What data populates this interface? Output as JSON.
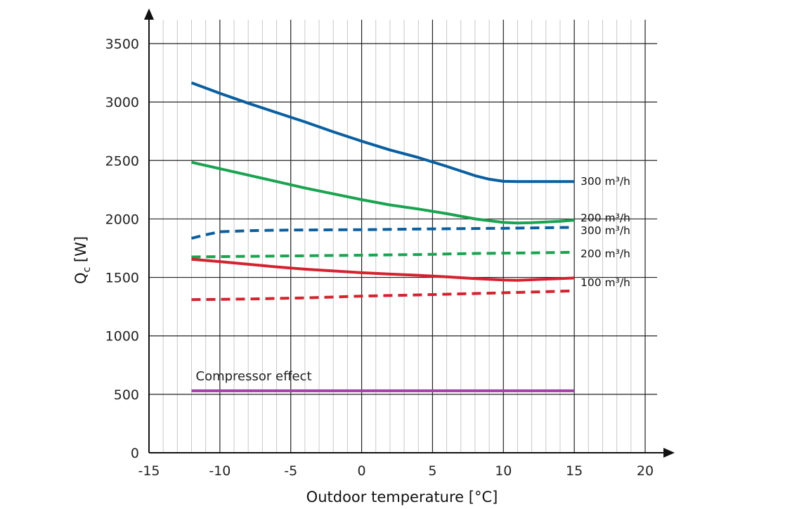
{
  "chart_data": {
    "type": "line",
    "title": "",
    "xlabel": "Outdoor temperature [°C]",
    "ylabel": "Q",
    "ylabel_subscript": "c",
    "ylabel_unit": "[W]",
    "xlim": [
      -15,
      20
    ],
    "ylim": [
      0,
      3500
    ],
    "x_ticks": [
      -15,
      -10,
      -5,
      0,
      5,
      10,
      15,
      20
    ],
    "x_tick_labels": [
      "-15",
      "-10",
      "-5",
      "0",
      "5",
      "10",
      "15",
      "20"
    ],
    "y_ticks": [
      0,
      500,
      1000,
      1500,
      2000,
      2500,
      3000,
      3500
    ],
    "y_tick_labels": [
      "0",
      "500",
      "1000",
      "1500",
      "2000",
      "2500",
      "3000",
      "3500"
    ],
    "grid": "major vertical every 5 °C, minor vertical every 1 °C, horizontal every 500 W",
    "series": [
      {
        "name": "300 m³/h",
        "style": "solid",
        "color": "#0a5fa0",
        "x": [
          -12,
          -10,
          -8,
          -6,
          -4,
          -2,
          0,
          2,
          4,
          6,
          8,
          9,
          10,
          11,
          12,
          13,
          14,
          15
        ],
        "y": [
          3165,
          3075,
          2990,
          2910,
          2830,
          2745,
          2665,
          2590,
          2525,
          2450,
          2370,
          2340,
          2322,
          2320,
          2320,
          2320,
          2320,
          2320
        ]
      },
      {
        "name": "200 m³/h",
        "style": "solid",
        "color": "#1aa350",
        "x": [
          -12,
          -10,
          -8,
          -6,
          -4,
          -2,
          0,
          2,
          4,
          6,
          8,
          10,
          11,
          12,
          14,
          15
        ],
        "y": [
          2485,
          2430,
          2375,
          2320,
          2265,
          2215,
          2165,
          2120,
          2085,
          2045,
          2000,
          1970,
          1965,
          1968,
          1980,
          1990
        ]
      },
      {
        "name": "300 m³/h",
        "style": "dashed",
        "color": "#0a5fa0",
        "x": [
          -12,
          -11,
          -10,
          -8,
          -5,
          0,
          5,
          10,
          15
        ],
        "y": [
          1835,
          1865,
          1890,
          1900,
          1905,
          1908,
          1915,
          1920,
          1928
        ]
      },
      {
        "name": "200 m³/h",
        "style": "dashed",
        "color": "#1aa350",
        "x": [
          -12,
          -8,
          -4,
          0,
          4,
          8,
          12,
          15
        ],
        "y": [
          1675,
          1680,
          1685,
          1690,
          1695,
          1705,
          1710,
          1715
        ]
      },
      {
        "name": "100 m³/h",
        "style": "solid",
        "color": "#d4232f",
        "x": [
          -12,
          -10,
          -8,
          -6,
          -4,
          -2,
          0,
          2,
          4,
          6,
          8,
          10,
          11,
          12,
          14,
          15
        ],
        "y": [
          1655,
          1635,
          1612,
          1590,
          1570,
          1555,
          1540,
          1528,
          1518,
          1505,
          1490,
          1478,
          1475,
          1480,
          1490,
          1495
        ]
      },
      {
        "name": "",
        "style": "dashed",
        "color": "#d4232f",
        "x": [
          -12,
          -8,
          -4,
          0,
          4,
          8,
          12,
          15
        ],
        "y": [
          1310,
          1315,
          1325,
          1340,
          1350,
          1362,
          1375,
          1385
        ]
      },
      {
        "name": "Compressor effect",
        "style": "solid",
        "color": "#a040a8",
        "x": [
          -12,
          15
        ],
        "y": [
          530,
          530
        ]
      }
    ],
    "legend": "inline labels at right end of lines",
    "annotations": [
      {
        "text": "Compressor effect",
        "x": -12,
        "y": 530
      }
    ]
  }
}
